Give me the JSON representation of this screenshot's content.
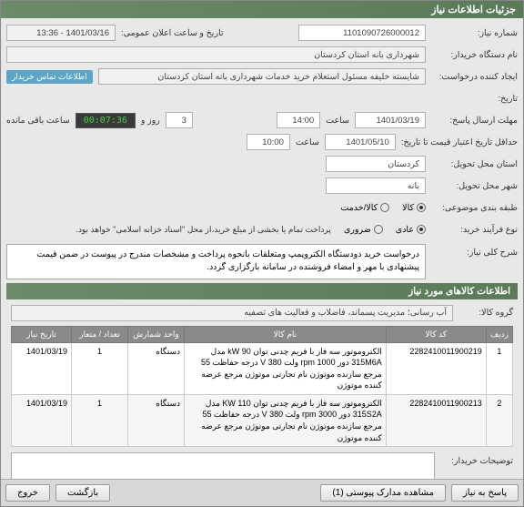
{
  "window": {
    "title": "جزئیات اطلاعات نیاز"
  },
  "form": {
    "need_number_label": "شماره نیاز:",
    "need_number": "1101090726000012",
    "announce_label": "تاریخ و ساعت اعلان عمومی:",
    "announce_value": "1401/03/16 - 13:36",
    "buyer_org_label": "نام دستگاه خریدار:",
    "buyer_org": "شهرداری بانه استان کردستان",
    "request_creator_label": "ایجاد کننده درخواست:",
    "request_creator": "شایسته خلیفه مسئول استعلام خرید خدمات شهرداری بانه استان کردستان",
    "contact_badge": "اطلاعات تماس خریدار",
    "history_label": "تاریخ:",
    "reply_deadline_label": "مهلت ارسال پاسخ:",
    "reply_deadline_date": "1401/03/19",
    "hour_label": "ساعت",
    "reply_deadline_time": "14:00",
    "days_value": "3",
    "days_and_label": "روز و",
    "timer": "00:07:36",
    "remaining_label": "ساعت باقی مانده",
    "validity_label": "حداقل تاریخ اعتبار قیمت تا تاریخ:",
    "validity_date": "1401/05/10",
    "validity_time": "10:00",
    "province_label": "استان محل تحویل:",
    "province": "کردستان",
    "city_label": "شهر محل تحویل:",
    "city": "بانه",
    "grouping_label": "طبقه بندی موضوعی:",
    "grouping_opt1": "کالا",
    "grouping_opt2": "کالا/خدمت",
    "process_label": "نوع فرآیند خرید:",
    "process_note": "پرداخت تمام یا بخشی از مبلغ خرید،از محل \"اسناد خزانه اسلامی\" خواهد بود.",
    "process_opt1": "عادی",
    "process_opt2": "ضروری"
  },
  "desc_section": {
    "label": "شرح کلی نیاز:",
    "text": "درخواست خرید دودستگاه الکتروپمپ ومتعلقات بانحوه پرداخت و مشخصات مندرج در پیوست در ضمن قیمت پیشنهادی با مهر و امضاء فروشنده در سامانه بارگزاری گردد."
  },
  "goods_section": {
    "header": "اطلاعات کالاهای مورد نیاز",
    "group_label": "گروه کالا:",
    "group_value": "آب رسانی؛ مدیریت پسماند، فاضلاب و فعالیت های تصفیه"
  },
  "table": {
    "columns": [
      "ردیف",
      "کد کالا",
      "نام کالا",
      "واحد شمارش",
      "تعداد / متعار",
      "تاریخ نیاز"
    ],
    "col_widths": [
      "28px",
      "110px",
      "auto",
      "62px",
      "62px",
      "66px"
    ],
    "rows": [
      {
        "idx": "1",
        "code": "2282410011900219",
        "name": "الکتروموتور سه فاز با فریم چدنی توان kW 90 مدل 315M6A دور rpm 1000 ولت V 380 درجه حفاظت 55 مرجع سازنده موتوژن نام تجارتی موتوژن مرجع عرضه کننده موتوژن",
        "unit": "دستگاه",
        "qty": "1",
        "date": "1401/03/19"
      },
      {
        "idx": "2",
        "code": "2282410011900213",
        "name": "الکتروموتور سه فاز با فریم چدنی توان KW 110 مدل 315S2A دور rpm 3000 ولت V 380 درجه حفاظت 55 مرجع سازنده موتوژن نام تجارتی موتوژن مرجع عرضه کننده موتوژن",
        "unit": "دستگاه",
        "qty": "1",
        "date": "1401/03/19"
      }
    ]
  },
  "buyer_notes": {
    "label": "توضیحات خریدار:"
  },
  "footer": {
    "reply_btn": "پاسخ به نیاز",
    "attach_btn": "مشاهده مدارک پیوستی (1)",
    "back_btn": "بازگشت",
    "exit_btn": "خروج"
  },
  "colors": {
    "header_bg": "#5a7a5a",
    "badge_bg": "#5aa5c8",
    "timer_bg": "#3a3a3a",
    "timer_fg": "#4ac94a",
    "th_bg": "#8a8a8a"
  }
}
